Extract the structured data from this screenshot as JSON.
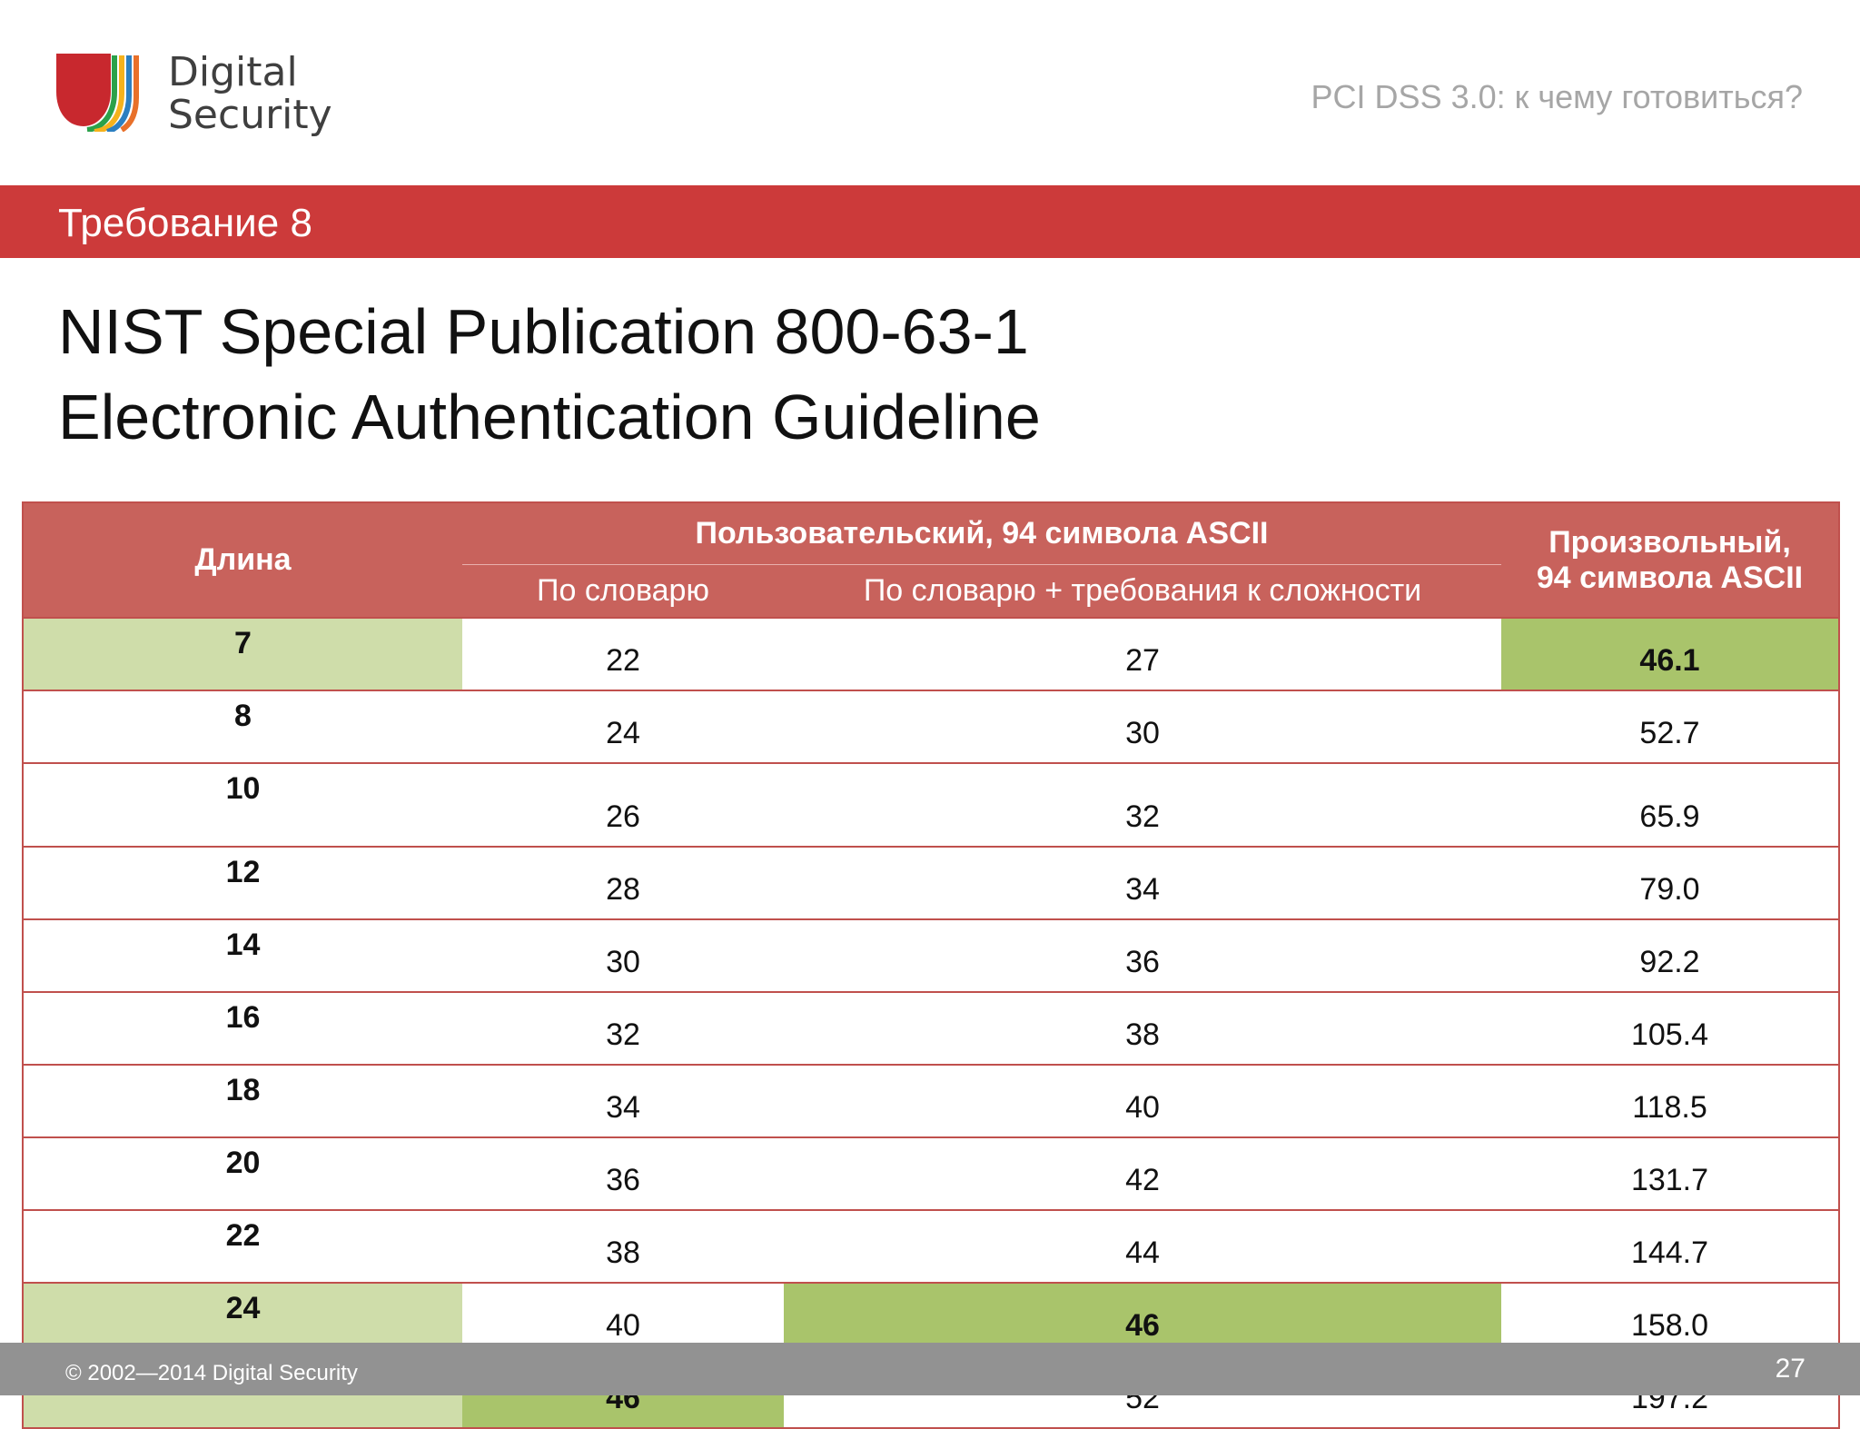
{
  "header": {
    "logo_line1": "Digital",
    "logo_line2": "Security",
    "subtitle": "PCI DSS 3.0: к чему готовиться?"
  },
  "section": "Требование 8",
  "title": {
    "line1": "NIST Special Publication 800-63-1",
    "line2": "Electronic Authentication Guideline"
  },
  "table": {
    "col_length": "Длина",
    "group_user": "Пользовательский, 94 символа ASCII",
    "sub_dict": "По словарю",
    "sub_dict_complex": "По словарю + требования к сложности",
    "col_random_line1": "Произвольный,",
    "col_random_line2": "94 символа ASCII",
    "rows": [
      {
        "length": "7",
        "dict": "22",
        "complex": "27",
        "random": "46.1"
      },
      {
        "length": "8",
        "dict": "24",
        "complex": "30",
        "random": "52.7"
      },
      {
        "length": "10",
        "dict": "26",
        "complex": "32",
        "random": "65.9"
      },
      {
        "length": "12",
        "dict": "28",
        "complex": "34",
        "random": "79.0"
      },
      {
        "length": "14",
        "dict": "30",
        "complex": "36",
        "random": "92.2"
      },
      {
        "length": "16",
        "dict": "32",
        "complex": "38",
        "random": "105.4"
      },
      {
        "length": "18",
        "dict": "34",
        "complex": "40",
        "random": "118.5"
      },
      {
        "length": "20",
        "dict": "36",
        "complex": "42",
        "random": "131.7"
      },
      {
        "length": "22",
        "dict": "38",
        "complex": "44",
        "random": "144.7"
      },
      {
        "length": "24",
        "dict": "40",
        "complex": "46",
        "random": "158.0"
      },
      {
        "length": "30",
        "dict": "46",
        "complex": "52",
        "random": "197.2"
      }
    ]
  },
  "footer": {
    "copyright": "© 2002—2014 Digital Security",
    "page": "27"
  },
  "colors": {
    "accent_red": "#cc3a3a",
    "header_red": "#c8625c",
    "highlight_green": "#a9c46b",
    "highlight_light_green": "#cfddaa",
    "footer_gray": "#929292"
  }
}
